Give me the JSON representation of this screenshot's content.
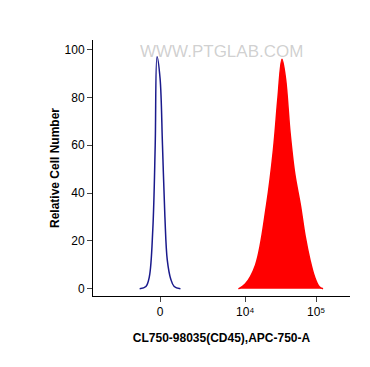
{
  "chart_data": {
    "type": "line",
    "x_label": "CL750-98035(CD45),APC-750-A",
    "y_label": "Relative Cell Number",
    "annotations": [
      "WWW.PTGLAB.COM"
    ],
    "log": "x",
    "grid": false,
    "xlim": [
      -5500,
      300000
    ],
    "xticks": [
      0,
      {
        "value": 10000,
        "label": "10⁴"
      },
      {
        "value": 100000,
        "label": "10⁵"
      }
    ],
    "ylim": [
      -3,
      104
    ],
    "yticks": [
      0,
      20,
      40,
      60,
      80,
      100
    ],
    "series": [
      {
        "type": "line",
        "color": "#1a1a8c",
        "x": [
          -900,
          -600,
          -450,
          -300,
          -200,
          -125,
          0,
          100,
          200,
          300,
          450,
          600,
          900
        ],
        "values": [
          0,
          1,
          5,
          25,
          60,
          97,
          88,
          60,
          30,
          12,
          4,
          1,
          0
        ]
      },
      {
        "type": "area",
        "color": "#ff0000",
        "x": [
          8000,
          10000,
          14000,
          20000,
          25000,
          29000,
          33000,
          37000,
          43000,
          50000,
          60000,
          70000,
          82000,
          95000,
          110000,
          125000
        ],
        "values": [
          0,
          2,
          10,
          35,
          58,
          80,
          96,
          88,
          65,
          48,
          35,
          22,
          12,
          5,
          1,
          0
        ]
      }
    ]
  }
}
